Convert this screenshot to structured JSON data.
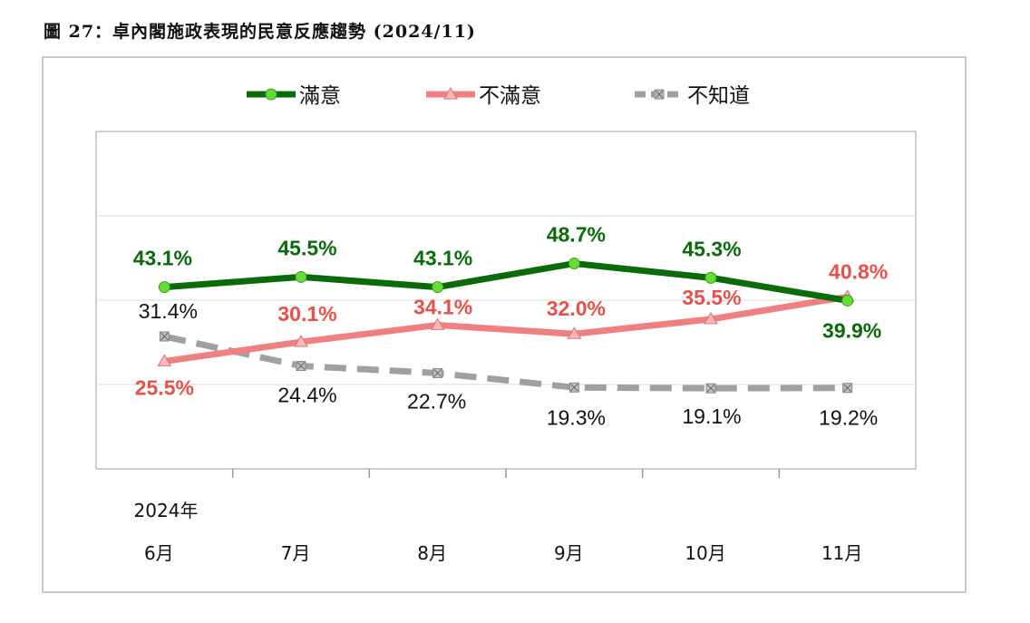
{
  "title": "圖 27：卓內閣施政表現的民意反應趨勢 (2024/11)",
  "chart_data": {
    "type": "line",
    "title": "圖 27：卓內閣施政表現的民意反應趨勢 (2024/11)",
    "year_label": "2024年",
    "categories": [
      "6月",
      "7月",
      "8月",
      "9月",
      "10月",
      "11月"
    ],
    "ylim": [
      0,
      80
    ],
    "yticks": [
      20,
      40,
      60
    ],
    "grid": true,
    "legend_position": "top-center",
    "series": [
      {
        "name": "滿意",
        "values": [
          43.1,
          45.5,
          43.1,
          48.7,
          45.3,
          39.9
        ],
        "labels": [
          "43.1%",
          "45.5%",
          "43.1%",
          "48.7%",
          "45.3%",
          "39.9%"
        ],
        "color": "#0a6b0a",
        "marker_color": "#66dd33",
        "marker": "circle",
        "dashed": false
      },
      {
        "name": "不滿意",
        "values": [
          25.5,
          30.1,
          34.1,
          32.0,
          35.5,
          40.8
        ],
        "labels": [
          "25.5%",
          "30.1%",
          "34.1%",
          "32.0%",
          "35.5%",
          "40.8%"
        ],
        "color": "#f08080",
        "label_color": "#e8504a",
        "marker_color": "#f8b8b8",
        "marker": "triangle",
        "dashed": false
      },
      {
        "name": "不知道",
        "values": [
          31.4,
          24.4,
          22.7,
          19.3,
          19.1,
          19.2
        ],
        "labels": [
          "31.4%",
          "24.4%",
          "22.7%",
          "19.3%",
          "19.1%",
          "19.2%"
        ],
        "color": "#a0a0a0",
        "label_color": "#111111",
        "marker_color": "#c0c0c0",
        "marker": "x-square",
        "dashed": true
      }
    ]
  }
}
